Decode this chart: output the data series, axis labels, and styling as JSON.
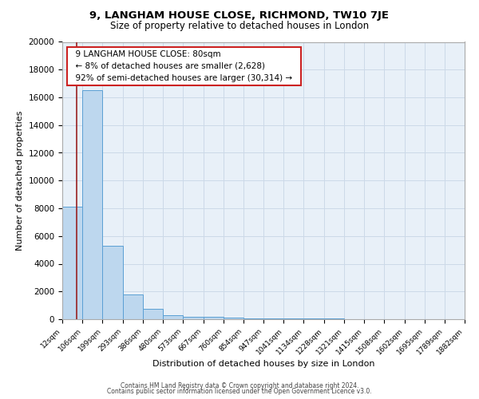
{
  "title": "9, LANGHAM HOUSE CLOSE, RICHMOND, TW10 7JE",
  "subtitle": "Size of property relative to detached houses in London",
  "xlabel": "Distribution of detached houses by size in London",
  "ylabel": "Number of detached properties",
  "bin_edges": [
    12,
    106,
    199,
    293,
    386,
    480,
    573,
    667,
    760,
    854,
    947,
    1041,
    1134,
    1228,
    1321,
    1415,
    1508,
    1602,
    1695,
    1789,
    1882
  ],
  "bin_labels": [
    "12sqm",
    "106sqm",
    "199sqm",
    "293sqm",
    "386sqm",
    "480sqm",
    "573sqm",
    "667sqm",
    "760sqm",
    "854sqm",
    "947sqm",
    "1041sqm",
    "1134sqm",
    "1228sqm",
    "1321sqm",
    "1415sqm",
    "1508sqm",
    "1602sqm",
    "1695sqm",
    "1789sqm",
    "1882sqm"
  ],
  "bar_heights": [
    8100,
    16500,
    5300,
    1800,
    750,
    300,
    200,
    150,
    100,
    80,
    60,
    50,
    40,
    30,
    25,
    20,
    18,
    15,
    12,
    10
  ],
  "bar_color": "#bdd7ee",
  "bar_edge_color": "#5a9fd4",
  "grid_color": "#ccd9e8",
  "background_color": "#e8f0f8",
  "fig_background": "#ffffff",
  "property_line_x": 80,
  "annotation_title": "9 LANGHAM HOUSE CLOSE: 80sqm",
  "annotation_line1": "← 8% of detached houses are smaller (2,628)",
  "annotation_line2": "92% of semi-detached houses are larger (30,314) →",
  "annotation_box_facecolor": "#ffffff",
  "annotation_border_color": "#cc2222",
  "red_line_color": "#992222",
  "ylim": [
    0,
    20000
  ],
  "yticks": [
    0,
    2000,
    4000,
    6000,
    8000,
    10000,
    12000,
    14000,
    16000,
    18000,
    20000
  ],
  "footer_line1": "Contains HM Land Registry data © Crown copyright and database right 2024.",
  "footer_line2": "Contains public sector information licensed under the Open Government Licence v3.0."
}
